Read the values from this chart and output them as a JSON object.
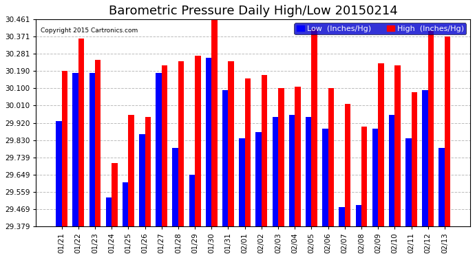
{
  "title": "Barometric Pressure Daily High/Low 20150214",
  "copyright": "Copyright 2015 Cartronics.com",
  "legend_low": "Low  (Inches/Hg)",
  "legend_high": "High  (Inches/Hg)",
  "dates": [
    "01/21",
    "01/22",
    "01/23",
    "01/24",
    "01/25",
    "01/26",
    "01/27",
    "01/28",
    "01/29",
    "01/30",
    "01/31",
    "02/01",
    "02/02",
    "02/03",
    "02/04",
    "02/05",
    "02/06",
    "02/07",
    "02/08",
    "02/09",
    "02/10",
    "02/11",
    "02/12",
    "02/13"
  ],
  "low_values": [
    29.93,
    30.18,
    30.18,
    29.53,
    29.61,
    29.86,
    30.18,
    29.79,
    29.65,
    30.26,
    30.09,
    29.84,
    29.87,
    29.95,
    29.96,
    29.95,
    29.89,
    29.48,
    29.49,
    29.89,
    29.96,
    29.84,
    30.09,
    29.79
  ],
  "high_values": [
    30.19,
    30.36,
    30.25,
    29.71,
    29.96,
    29.95,
    30.22,
    30.24,
    30.27,
    30.46,
    30.24,
    30.15,
    30.17,
    30.1,
    30.11,
    30.41,
    30.1,
    30.02,
    29.9,
    30.23,
    30.22,
    30.08,
    30.4,
    30.37
  ],
  "ylim_min": 29.379,
  "ylim_max": 30.461,
  "yticks": [
    29.379,
    29.469,
    29.559,
    29.649,
    29.739,
    29.83,
    29.92,
    30.01,
    30.1,
    30.19,
    30.281,
    30.371,
    30.461
  ],
  "ytick_labels": [
    "29.379",
    "29.469",
    "29.559",
    "29.649",
    "29.739",
    "29.830",
    "29.920",
    "30.010",
    "30.100",
    "30.190",
    "30.281",
    "30.371",
    "30.461"
  ],
  "bar_width": 0.35,
  "low_color": "#0000ff",
  "high_color": "#ff0000",
  "bg_color": "#ffffff",
  "grid_color": "#aaaaaa",
  "title_fontsize": 13,
  "tick_fontsize": 7.5,
  "legend_fontsize": 8
}
